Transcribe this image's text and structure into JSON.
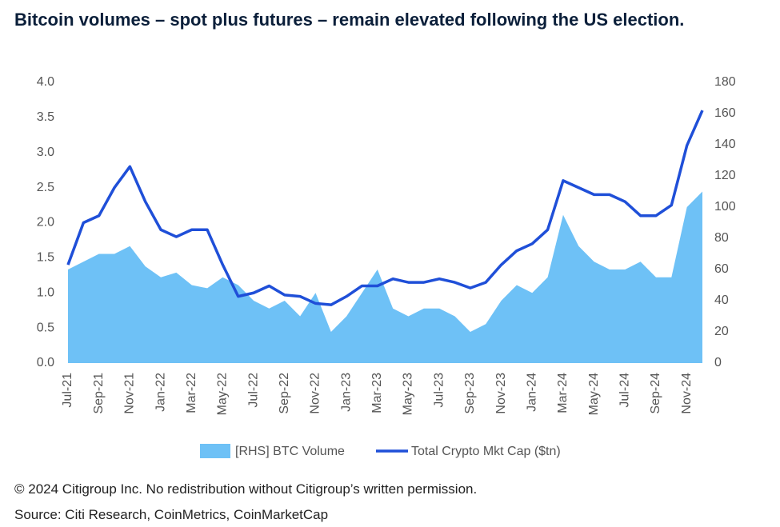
{
  "chart_data": {
    "type": "area-line",
    "title": "Bitcoin volumes – spot plus futures – remain elevated following the US election.",
    "categories": [
      "Jul-21",
      null,
      "Sep-21",
      null,
      "Nov-21",
      null,
      "Jan-22",
      null,
      "Mar-22",
      null,
      "May-22",
      null,
      "Jul-22",
      null,
      "Sep-22",
      null,
      "Nov-22",
      null,
      "Jan-23",
      null,
      "Mar-23",
      null,
      "May-23",
      null,
      "Jul-23",
      null,
      "Sep-23",
      null,
      "Nov-23",
      null,
      "Jan-24",
      null,
      "Mar-24",
      null,
      "May-24",
      null,
      "Jul-24",
      null,
      "Sep-24",
      null,
      "Nov-24",
      null
    ],
    "series": [
      {
        "name": "[RHS] BTC Volume",
        "color": "#6ec1f6",
        "axis": "y2",
        "values": [
          60,
          65,
          70,
          70,
          75,
          62,
          55,
          58,
          50,
          48,
          55,
          50,
          40,
          35,
          40,
          30,
          45,
          20,
          30,
          45,
          60,
          35,
          30,
          35,
          35,
          30,
          20,
          25,
          40,
          50,
          45,
          55,
          95,
          75,
          65,
          60,
          60,
          65,
          55,
          55,
          100,
          110
        ]
      },
      {
        "name": "Total Crypto Mkt Cap ($tn)",
        "color": "#1f4fd8",
        "values": [
          1.4,
          2.0,
          2.1,
          2.5,
          2.8,
          2.3,
          1.9,
          1.8,
          1.9,
          1.9,
          1.4,
          0.95,
          1.0,
          1.1,
          0.97,
          0.95,
          0.85,
          0.83,
          0.95,
          1.1,
          1.1,
          1.2,
          1.15,
          1.15,
          1.2,
          1.15,
          1.07,
          1.15,
          1.4,
          1.6,
          1.7,
          1.9,
          2.6,
          2.5,
          2.4,
          2.4,
          2.3,
          2.1,
          2.1,
          2.25,
          3.1,
          3.6
        ]
      }
    ],
    "ylim": [
      0,
      4
    ],
    "yticks": [
      {
        "value": 0,
        "label": "0.0"
      },
      0.5,
      {
        "value": 1,
        "label": "1.0"
      },
      1.5,
      {
        "value": 2,
        "label": "2.0"
      },
      2.5,
      {
        "value": 3,
        "label": "3.0"
      },
      3.5,
      {
        "value": 4,
        "label": "4.0"
      }
    ],
    "y2lim": [
      0,
      180
    ],
    "y2ticks": [
      0,
      20,
      40,
      60,
      80,
      100,
      120,
      140,
      160,
      180
    ],
    "copyright": "© 2024 Citigroup Inc. No redistribution without Citigroup’s written permission.",
    "source": "Source: Citi Research, CoinMetrics, CoinMarketCap"
  }
}
